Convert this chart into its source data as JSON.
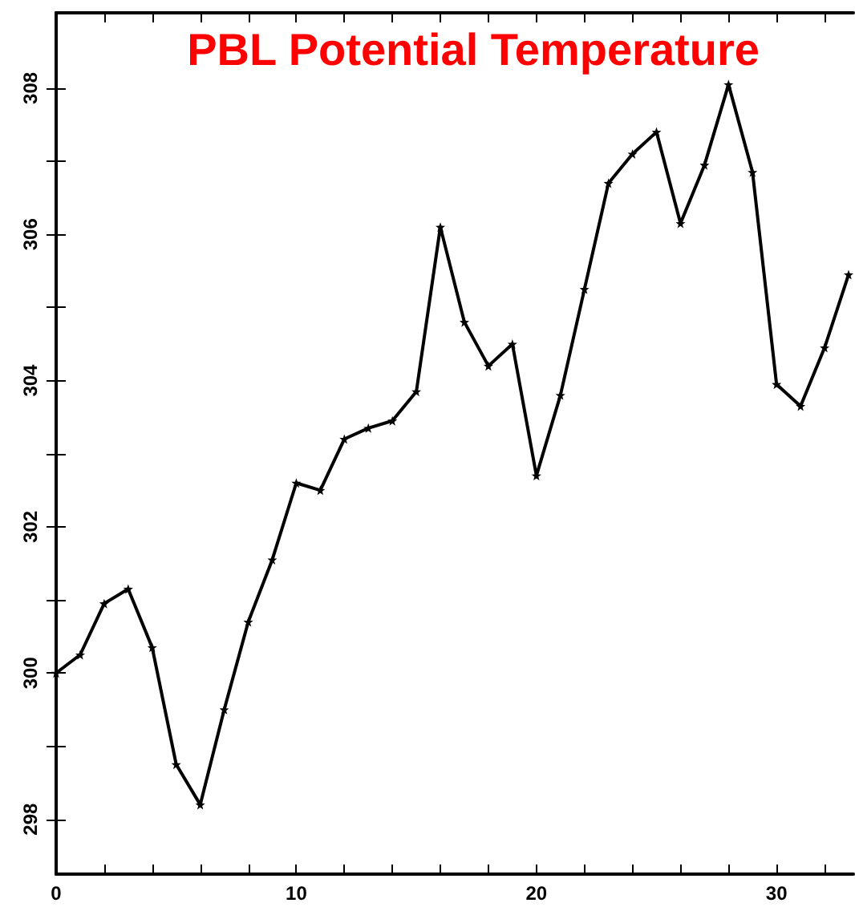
{
  "chart_data": {
    "type": "line",
    "title": "PBL Potential Temperature",
    "x": [
      0,
      1,
      2,
      3,
      4,
      5,
      6,
      7,
      8,
      9,
      10,
      11,
      12,
      13,
      14,
      15,
      16,
      17,
      18,
      19,
      20,
      21,
      22,
      23,
      24,
      25,
      26,
      27,
      28,
      29,
      30,
      31,
      32,
      33
    ],
    "series": [
      {
        "color": "#000000",
        "values": [
          300.0,
          300.25,
          300.95,
          301.15,
          300.35,
          298.75,
          298.2,
          299.5,
          300.7,
          301.55,
          302.6,
          302.5,
          303.2,
          303.35,
          303.45,
          303.85,
          306.1,
          304.8,
          304.2,
          304.5,
          302.7,
          303.8,
          305.25,
          306.7,
          307.1,
          307.4,
          306.15,
          306.95,
          308.05,
          306.85,
          303.95,
          303.65,
          304.45,
          305.45
        ]
      }
    ],
    "xlim": [
      0,
      33.2
    ],
    "xticks": [
      0,
      {
        "value": 2,
        "label": null
      },
      {
        "value": 4,
        "label": null
      },
      {
        "value": 6,
        "label": null
      },
      {
        "value": 8,
        "label": null
      },
      10,
      {
        "value": 12,
        "label": null
      },
      {
        "value": 14,
        "label": null
      },
      {
        "value": 16,
        "label": null
      },
      {
        "value": 18,
        "label": null
      },
      20,
      {
        "value": 22,
        "label": null
      },
      {
        "value": 24,
        "label": null
      },
      {
        "value": 26,
        "label": null
      },
      {
        "value": 28,
        "label": null
      },
      30,
      {
        "value": 32,
        "label": null
      }
    ],
    "ylim": [
      297.25,
      309.03
    ],
    "yticks": [
      298,
      {
        "value": 299,
        "label": null
      },
      300,
      {
        "value": 301,
        "label": null
      },
      302,
      {
        "value": 303,
        "label": null
      },
      304,
      {
        "value": 305,
        "label": null
      },
      306,
      {
        "value": 307,
        "label": null
      },
      308
    ],
    "marker": "star",
    "line_style": "solid"
  }
}
